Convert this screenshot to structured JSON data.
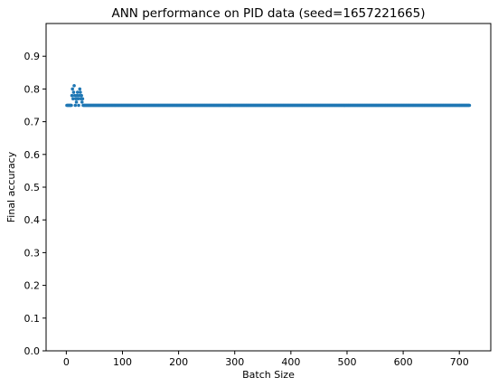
{
  "chart_data": {
    "type": "scatter",
    "title": "ANN performance on PID data (seed=1657221665)",
    "xlabel": "Batch Size",
    "ylabel": "Final accuracy",
    "xlim": [
      -36,
      756
    ],
    "ylim": [
      0.0,
      1.0
    ],
    "xticks": [
      0,
      100,
      200,
      300,
      400,
      500,
      600,
      700
    ],
    "yticks": [
      0.0,
      0.1,
      0.2,
      0.3,
      0.4,
      0.5,
      0.6,
      0.7,
      0.8,
      0.9
    ],
    "grid": false,
    "marker_color": "#1f77b4",
    "early_points": {
      "x": [
        1,
        2,
        3,
        4,
        5,
        6,
        7,
        8,
        9,
        10,
        11,
        12,
        13,
        14,
        15,
        16,
        17,
        18,
        19,
        20,
        21,
        22,
        23,
        24,
        25,
        26,
        27,
        28,
        29,
        30,
        31,
        32,
        33,
        34,
        35,
        36,
        37,
        38,
        39,
        40
      ],
      "y": [
        0.75,
        0.75,
        0.75,
        0.75,
        0.75,
        0.75,
        0.75,
        0.75,
        0.75,
        0.78,
        0.8,
        0.77,
        0.79,
        0.81,
        0.78,
        0.75,
        0.77,
        0.76,
        0.78,
        0.79,
        0.77,
        0.75,
        0.78,
        0.8,
        0.79,
        0.77,
        0.78,
        0.76,
        0.77,
        0.75,
        0.75,
        0.75,
        0.75,
        0.75,
        0.75,
        0.75,
        0.75,
        0.75,
        0.75,
        0.75
      ]
    },
    "plateau": {
      "x_start": 41,
      "x_end": 718,
      "x_step": 1,
      "y": 0.75
    }
  }
}
